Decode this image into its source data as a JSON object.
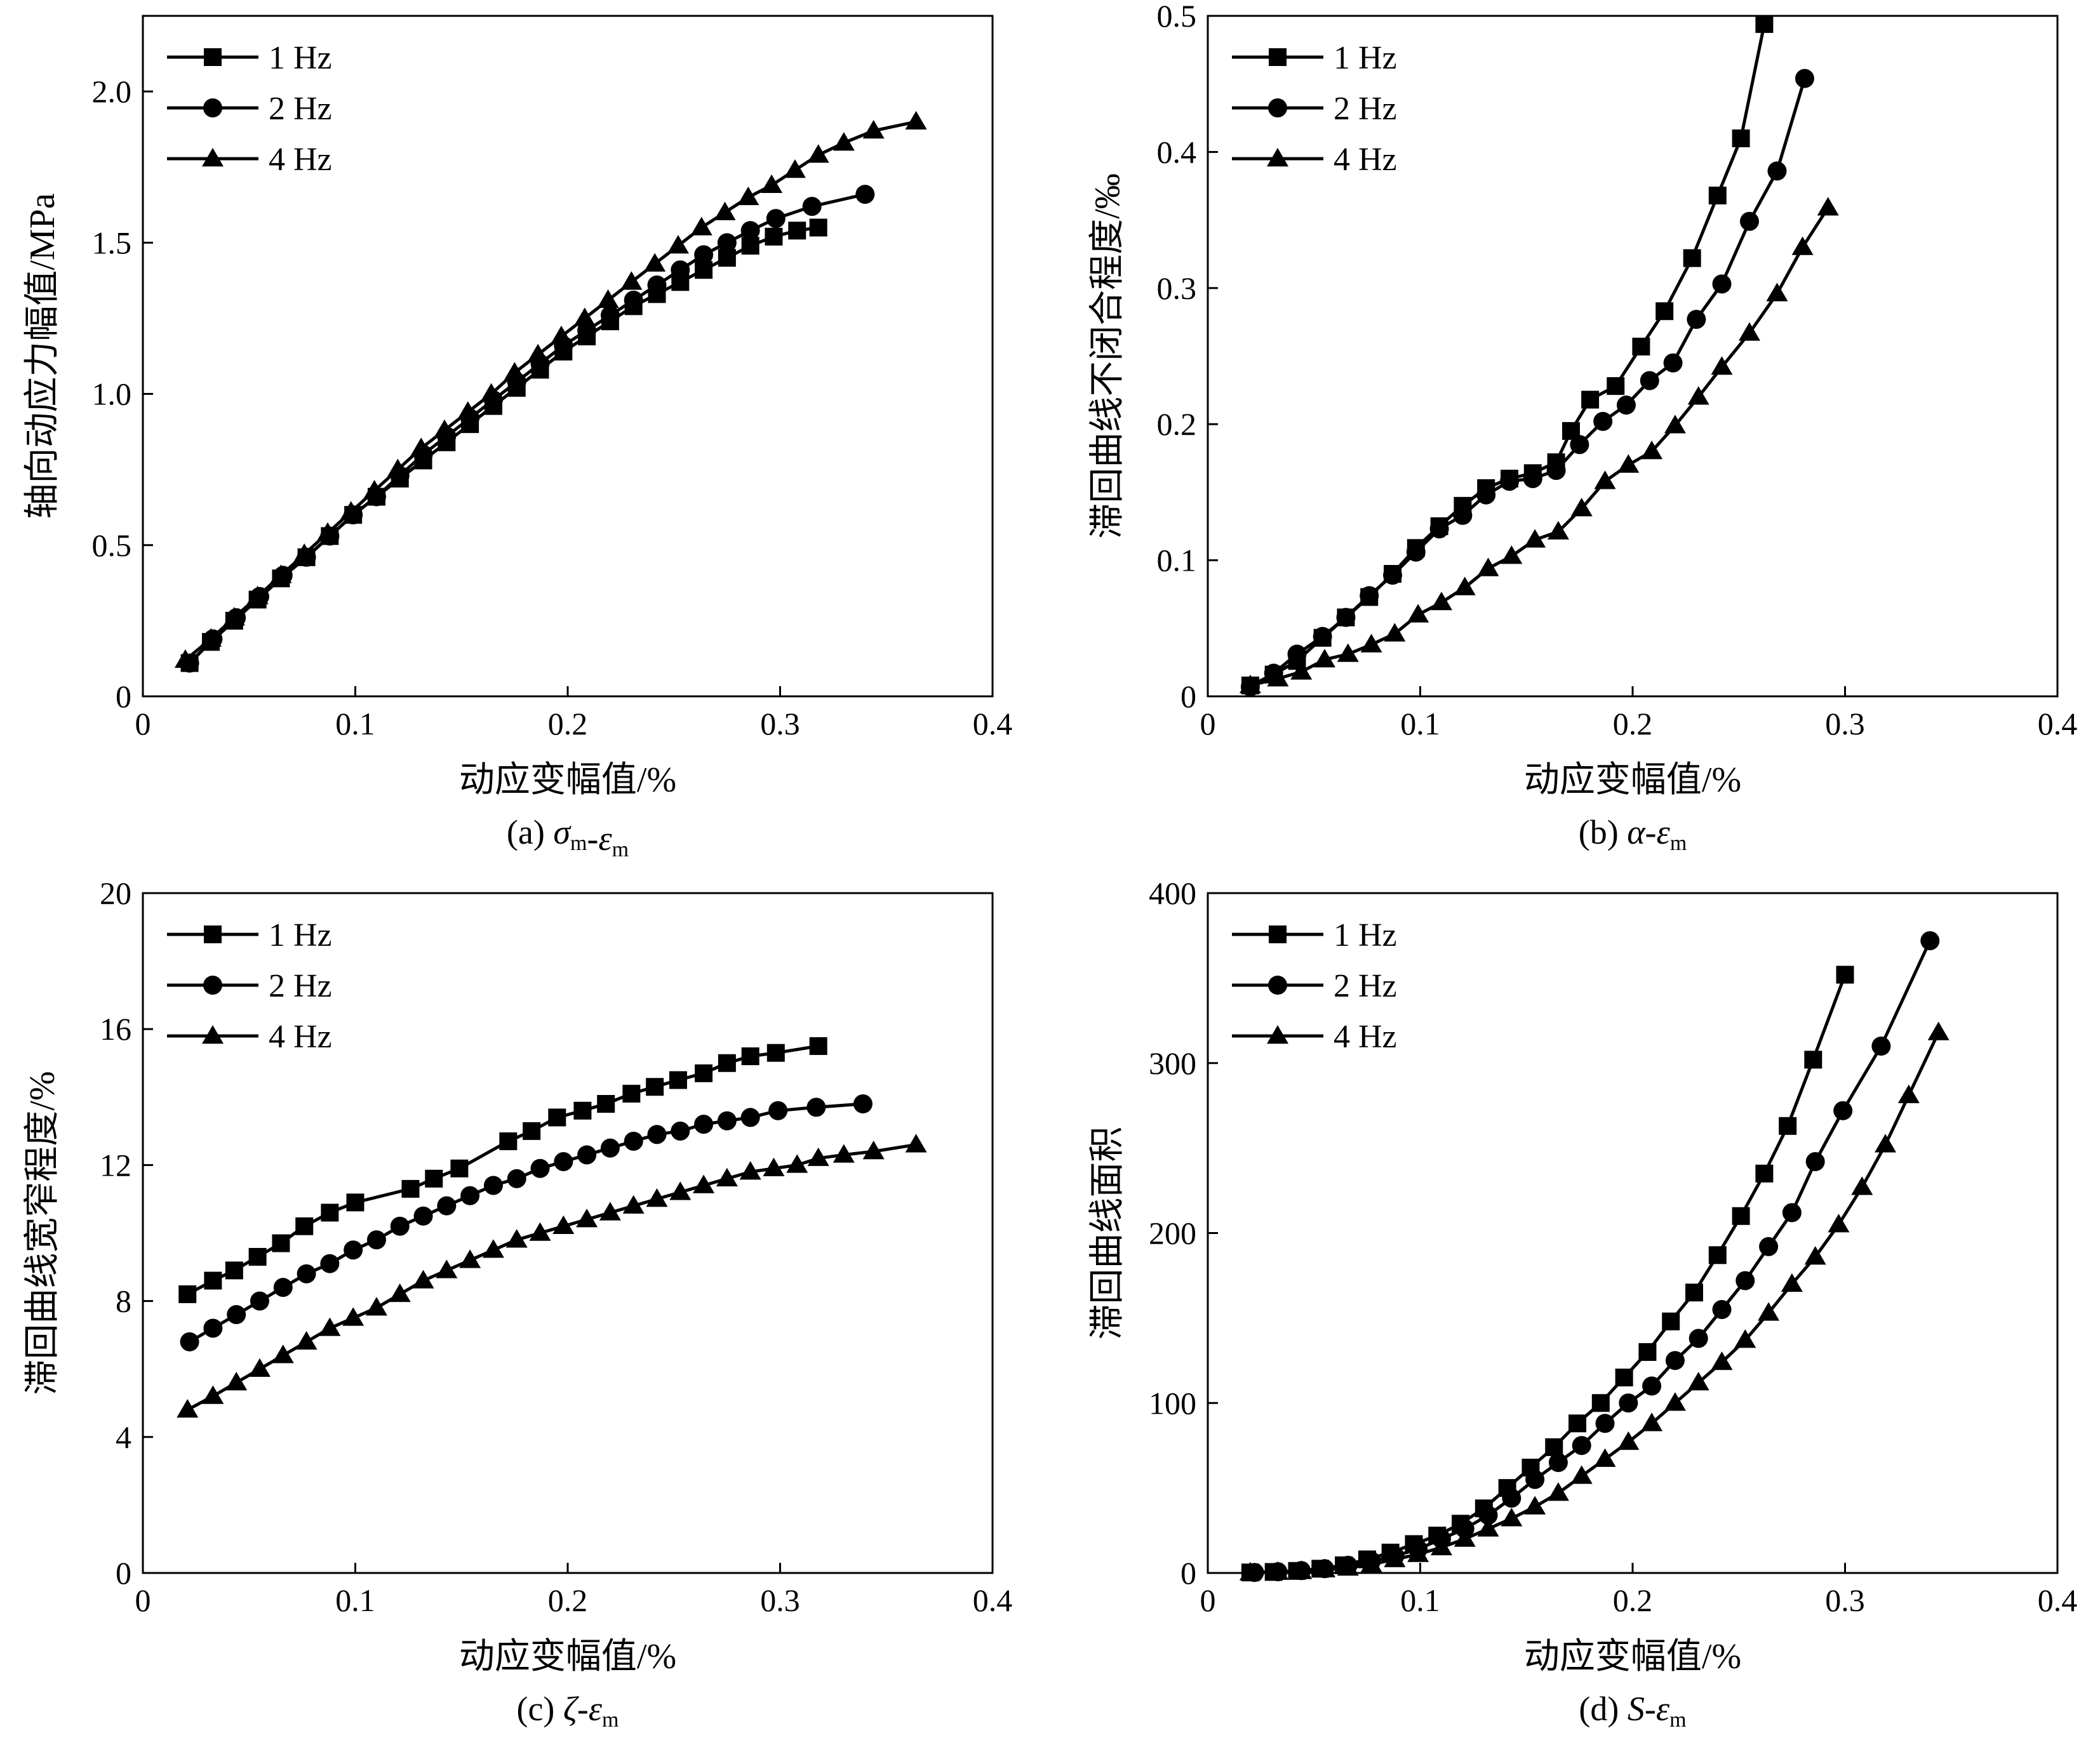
{
  "colors": {
    "ink": "#000000",
    "background": "#ffffff"
  },
  "chart_data": [
    {
      "type": "line",
      "caption": "(a) σm-εm",
      "caption_parts": {
        "prefix": "(a) ",
        "sym1": "σ",
        "sub1": "m",
        "dash": "-",
        "sym2": "ε",
        "sub2": "m"
      },
      "xlabel": "动应变幅值/%",
      "ylabel": "轴向动应力幅值/MPa",
      "xlim": [
        0,
        0.4
      ],
      "ylim": [
        0,
        2.25
      ],
      "xticks": [
        0,
        0.1,
        0.2,
        0.3,
        0.4
      ],
      "xtick_labels": [
        "0",
        "0.1",
        "0.2",
        "0.3",
        "0.4"
      ],
      "yticks": [
        0,
        0.5,
        1.0,
        1.5,
        2.0
      ],
      "ytick_labels": [
        "0",
        "0.5",
        "1.0",
        "1.5",
        "2.0"
      ],
      "legend_position": "top-left",
      "grid": false,
      "series": [
        {
          "name": "1 Hz",
          "marker": "square",
          "x": [
            0.022,
            0.032,
            0.043,
            0.054,
            0.065,
            0.077,
            0.088,
            0.099,
            0.11,
            0.121,
            0.132,
            0.143,
            0.154,
            0.165,
            0.176,
            0.187,
            0.198,
            0.209,
            0.22,
            0.231,
            0.242,
            0.253,
            0.264,
            0.275,
            0.286,
            0.297,
            0.308,
            0.318
          ],
          "y": [
            0.11,
            0.18,
            0.25,
            0.32,
            0.39,
            0.46,
            0.53,
            0.6,
            0.66,
            0.72,
            0.78,
            0.84,
            0.9,
            0.96,
            1.02,
            1.08,
            1.14,
            1.19,
            1.24,
            1.29,
            1.33,
            1.37,
            1.41,
            1.45,
            1.49,
            1.52,
            1.54,
            1.55
          ]
        },
        {
          "name": "2 Hz",
          "marker": "circle",
          "x": [
            0.022,
            0.033,
            0.044,
            0.055,
            0.066,
            0.077,
            0.088,
            0.099,
            0.11,
            0.121,
            0.132,
            0.143,
            0.154,
            0.165,
            0.176,
            0.187,
            0.198,
            0.209,
            0.22,
            0.231,
            0.242,
            0.253,
            0.264,
            0.275,
            0.286,
            0.298,
            0.315,
            0.34
          ],
          "y": [
            0.11,
            0.19,
            0.26,
            0.33,
            0.4,
            0.46,
            0.53,
            0.6,
            0.66,
            0.73,
            0.8,
            0.86,
            0.92,
            0.98,
            1.04,
            1.1,
            1.16,
            1.21,
            1.26,
            1.31,
            1.36,
            1.41,
            1.46,
            1.5,
            1.54,
            1.58,
            1.62,
            1.66
          ]
        },
        {
          "name": "4 Hz",
          "marker": "triangle",
          "x": [
            0.02,
            0.032,
            0.043,
            0.054,
            0.065,
            0.076,
            0.087,
            0.098,
            0.109,
            0.12,
            0.131,
            0.142,
            0.153,
            0.164,
            0.175,
            0.186,
            0.197,
            0.208,
            0.219,
            0.23,
            0.241,
            0.252,
            0.263,
            0.274,
            0.285,
            0.296,
            0.307,
            0.318,
            0.33,
            0.344,
            0.364
          ],
          "y": [
            0.12,
            0.19,
            0.26,
            0.33,
            0.4,
            0.47,
            0.54,
            0.61,
            0.68,
            0.75,
            0.82,
            0.88,
            0.94,
            1.0,
            1.07,
            1.13,
            1.19,
            1.25,
            1.31,
            1.37,
            1.43,
            1.49,
            1.55,
            1.6,
            1.65,
            1.69,
            1.74,
            1.79,
            1.83,
            1.87,
            1.9
          ]
        }
      ]
    },
    {
      "type": "line",
      "caption": "(b) α-εm",
      "caption_parts": {
        "prefix": "(b) ",
        "sym1": "α",
        "sub1": "",
        "dash": "-",
        "sym2": "ε",
        "sub2": "m"
      },
      "xlabel": "动应变幅值/%",
      "ylabel": "滞回曲线不闭合程度/‰",
      "xlim": [
        0,
        0.4
      ],
      "ylim": [
        0,
        0.5
      ],
      "xticks": [
        0,
        0.1,
        0.2,
        0.3,
        0.4
      ],
      "xtick_labels": [
        "0",
        "0.1",
        "0.2",
        "0.3",
        "0.4"
      ],
      "yticks": [
        0,
        0.1,
        0.2,
        0.3,
        0.4,
        0.5
      ],
      "ytick_labels": [
        "0",
        "0.1",
        "0.2",
        "0.3",
        "0.4",
        "0.5"
      ],
      "legend_position": "top-left",
      "grid": false,
      "series": [
        {
          "name": "1 Hz",
          "marker": "square",
          "x": [
            0.02,
            0.031,
            0.042,
            0.054,
            0.065,
            0.076,
            0.087,
            0.098,
            0.109,
            0.12,
            0.131,
            0.142,
            0.153,
            0.164,
            0.171,
            0.18,
            0.192,
            0.204,
            0.215,
            0.228,
            0.24,
            0.251,
            0.262
          ],
          "y": [
            0.008,
            0.016,
            0.026,
            0.043,
            0.058,
            0.073,
            0.09,
            0.109,
            0.125,
            0.14,
            0.153,
            0.16,
            0.164,
            0.172,
            0.195,
            0.218,
            0.228,
            0.257,
            0.283,
            0.322,
            0.368,
            0.41,
            0.494
          ]
        },
        {
          "name": "2 Hz",
          "marker": "circle",
          "x": [
            0.02,
            0.031,
            0.042,
            0.054,
            0.065,
            0.076,
            0.087,
            0.098,
            0.109,
            0.12,
            0.131,
            0.142,
            0.153,
            0.164,
            0.175,
            0.186,
            0.197,
            0.208,
            0.219,
            0.23,
            0.242,
            0.255,
            0.268,
            0.281
          ],
          "y": [
            0.007,
            0.017,
            0.031,
            0.044,
            0.058,
            0.074,
            0.089,
            0.106,
            0.123,
            0.133,
            0.148,
            0.158,
            0.16,
            0.166,
            0.185,
            0.202,
            0.214,
            0.232,
            0.245,
            0.277,
            0.303,
            0.349,
            0.386,
            0.454
          ]
        },
        {
          "name": "4 Hz",
          "marker": "triangle",
          "x": [
            0.02,
            0.033,
            0.044,
            0.055,
            0.066,
            0.077,
            0.088,
            0.099,
            0.11,
            0.121,
            0.132,
            0.143,
            0.154,
            0.165,
            0.176,
            0.187,
            0.198,
            0.209,
            0.22,
            0.231,
            0.242,
            0.255,
            0.268,
            0.28,
            0.292
          ],
          "y": [
            0.008,
            0.013,
            0.018,
            0.027,
            0.031,
            0.038,
            0.046,
            0.06,
            0.069,
            0.08,
            0.094,
            0.103,
            0.115,
            0.121,
            0.138,
            0.158,
            0.17,
            0.18,
            0.199,
            0.22,
            0.242,
            0.267,
            0.296,
            0.33,
            0.359
          ]
        }
      ]
    },
    {
      "type": "line",
      "caption": "(c) ζ-εm",
      "caption_parts": {
        "prefix": "(c) ",
        "sym1": "ζ",
        "sub1": "",
        "dash": "-",
        "sym2": "ε",
        "sub2": "m"
      },
      "xlabel": "动应变幅值/%",
      "ylabel": "滞回曲线宽窄程度/%",
      "xlim": [
        0,
        0.4
      ],
      "ylim": [
        0,
        20
      ],
      "xticks": [
        0,
        0.1,
        0.2,
        0.3,
        0.4
      ],
      "xtick_labels": [
        "0",
        "0.1",
        "0.2",
        "0.3",
        "0.4"
      ],
      "yticks": [
        0,
        4,
        8,
        12,
        16,
        20
      ],
      "ytick_labels": [
        "0",
        "4",
        "8",
        "12",
        "16",
        "20"
      ],
      "legend_position": "top-left",
      "grid": false,
      "series": [
        {
          "name": "1 Hz",
          "marker": "square",
          "x": [
            0.021,
            0.033,
            0.043,
            0.054,
            0.065,
            0.076,
            0.088,
            0.1,
            0.126,
            0.137,
            0.149,
            0.172,
            0.183,
            0.195,
            0.207,
            0.218,
            0.23,
            0.241,
            0.252,
            0.264,
            0.275,
            0.286,
            0.298,
            0.318
          ],
          "y": [
            8.2,
            8.6,
            8.9,
            9.3,
            9.7,
            10.2,
            10.6,
            10.9,
            11.3,
            11.6,
            11.9,
            12.7,
            13.0,
            13.4,
            13.6,
            13.8,
            14.1,
            14.3,
            14.5,
            14.7,
            15.0,
            15.2,
            15.3,
            15.5
          ]
        },
        {
          "name": "2 Hz",
          "marker": "circle",
          "x": [
            0.022,
            0.033,
            0.044,
            0.055,
            0.066,
            0.077,
            0.088,
            0.099,
            0.11,
            0.121,
            0.132,
            0.143,
            0.154,
            0.165,
            0.176,
            0.187,
            0.198,
            0.209,
            0.22,
            0.231,
            0.242,
            0.253,
            0.264,
            0.275,
            0.286,
            0.299,
            0.317,
            0.339
          ],
          "y": [
            6.8,
            7.2,
            7.6,
            8.0,
            8.4,
            8.8,
            9.1,
            9.5,
            9.8,
            10.2,
            10.5,
            10.8,
            11.1,
            11.4,
            11.6,
            11.9,
            12.1,
            12.3,
            12.5,
            12.7,
            12.9,
            13.0,
            13.2,
            13.3,
            13.4,
            13.6,
            13.7,
            13.8
          ]
        },
        {
          "name": "4 Hz",
          "marker": "triangle",
          "x": [
            0.021,
            0.033,
            0.044,
            0.055,
            0.066,
            0.077,
            0.088,
            0.099,
            0.11,
            0.121,
            0.132,
            0.143,
            0.154,
            0.165,
            0.176,
            0.187,
            0.198,
            0.209,
            0.22,
            0.231,
            0.242,
            0.253,
            0.264,
            0.275,
            0.286,
            0.297,
            0.308,
            0.318,
            0.33,
            0.344,
            0.364
          ],
          "y": [
            4.8,
            5.2,
            5.6,
            6.0,
            6.4,
            6.8,
            7.2,
            7.5,
            7.8,
            8.2,
            8.6,
            8.9,
            9.2,
            9.5,
            9.8,
            10.0,
            10.2,
            10.4,
            10.6,
            10.8,
            11.0,
            11.2,
            11.4,
            11.6,
            11.8,
            11.9,
            12.0,
            12.2,
            12.3,
            12.4,
            12.6
          ]
        }
      ]
    },
    {
      "type": "line",
      "caption": "(d) S-εm",
      "caption_parts": {
        "prefix": "(d) ",
        "sym1": "S",
        "sub1": "",
        "dash": "-",
        "sym2": "ε",
        "sub2": "m"
      },
      "xlabel": "动应变幅值/%",
      "ylabel": "滞回曲线面积",
      "xlim": [
        0,
        0.4
      ],
      "ylim": [
        0,
        400
      ],
      "xticks": [
        0,
        0.1,
        0.2,
        0.3,
        0.4
      ],
      "xtick_labels": [
        "0",
        "0.1",
        "0.2",
        "0.3",
        "0.4"
      ],
      "yticks": [
        0,
        100,
        200,
        300,
        400
      ],
      "ytick_labels": [
        "0",
        "100",
        "200",
        "300",
        "400"
      ],
      "legend_position": "top-left",
      "grid": false,
      "series": [
        {
          "name": "1 Hz",
          "marker": "square",
          "x": [
            0.02,
            0.031,
            0.042,
            0.053,
            0.064,
            0.075,
            0.086,
            0.097,
            0.108,
            0.119,
            0.13,
            0.141,
            0.152,
            0.163,
            0.174,
            0.185,
            0.196,
            0.207,
            0.218,
            0.229,
            0.24,
            0.251,
            0.262,
            0.273,
            0.285,
            0.3
          ],
          "y": [
            0.3,
            0.6,
            1.2,
            2.5,
            4.5,
            8,
            12,
            17,
            22,
            29,
            38,
            50,
            62,
            74,
            88,
            100,
            115,
            130,
            148,
            165,
            187,
            210,
            235,
            263,
            302,
            352
          ]
        },
        {
          "name": "2 Hz",
          "marker": "circle",
          "x": [
            0.022,
            0.033,
            0.044,
            0.055,
            0.066,
            0.077,
            0.088,
            0.099,
            0.11,
            0.121,
            0.132,
            0.143,
            0.154,
            0.165,
            0.176,
            0.187,
            0.198,
            0.209,
            0.22,
            0.231,
            0.242,
            0.253,
            0.264,
            0.275,
            0.286,
            0.299,
            0.317,
            0.34
          ],
          "y": [
            0.3,
            0.7,
            1.4,
            2.5,
            4.5,
            7,
            10,
            14,
            20,
            26,
            34,
            44,
            55,
            65,
            75,
            88,
            100,
            110,
            125,
            138,
            155,
            172,
            192,
            212,
            242,
            272,
            310,
            372
          ]
        },
        {
          "name": "4 Hz",
          "marker": "triangle",
          "x": [
            0.02,
            0.033,
            0.044,
            0.055,
            0.066,
            0.077,
            0.088,
            0.099,
            0.11,
            0.121,
            0.132,
            0.143,
            0.154,
            0.165,
            0.176,
            0.187,
            0.198,
            0.209,
            0.22,
            0.231,
            0.242,
            0.253,
            0.264,
            0.275,
            0.286,
            0.297,
            0.308,
            0.319,
            0.33,
            0.344
          ],
          "y": [
            0.2,
            0.5,
            1,
            2,
            3,
            5,
            8,
            11,
            15,
            20,
            26,
            32,
            39,
            47,
            57,
            67,
            77,
            88,
            100,
            112,
            124,
            137,
            153,
            170,
            186,
            205,
            227,
            252,
            281,
            318
          ]
        }
      ]
    }
  ]
}
